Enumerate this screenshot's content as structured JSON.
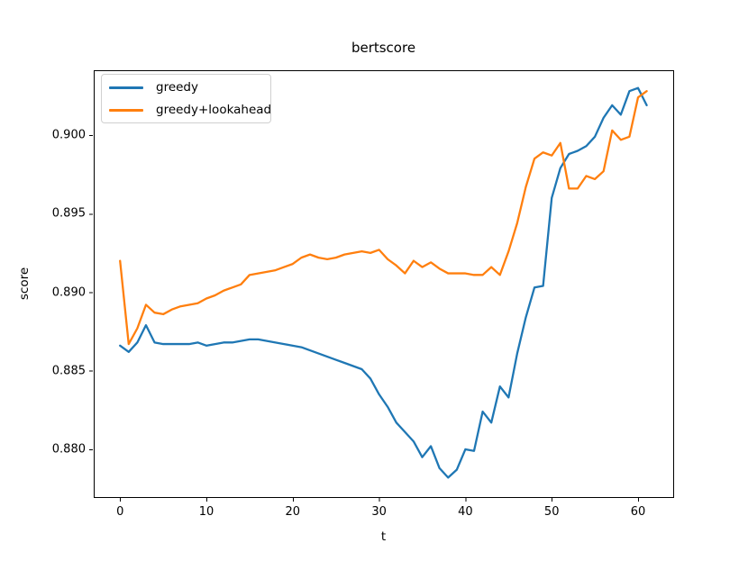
{
  "chart_data": {
    "type": "line",
    "title": "bertscore",
    "xlabel": "t",
    "ylabel": "score",
    "grid": false,
    "legend_position": "upper left",
    "xlim": [
      -3.05,
      64.07
    ],
    "ylim": [
      0.87696,
      0.90413
    ],
    "xticks": [
      0,
      10,
      20,
      30,
      40,
      50,
      60
    ],
    "xtick_labels": [
      "0",
      "10",
      "20",
      "30",
      "40",
      "50",
      "60"
    ],
    "yticks": [
      0.88,
      0.885,
      0.89,
      0.895,
      0.9
    ],
    "ytick_labels": [
      "0.880",
      "0.885",
      "0.890",
      "0.895",
      "0.900"
    ],
    "x": [
      0,
      1,
      2,
      3,
      4,
      5,
      6,
      7,
      8,
      9,
      10,
      11,
      12,
      13,
      14,
      15,
      16,
      17,
      18,
      19,
      20,
      21,
      22,
      23,
      24,
      25,
      26,
      27,
      28,
      29,
      30,
      31,
      32,
      33,
      34,
      35,
      36,
      37,
      38,
      39,
      40,
      41,
      42,
      43,
      44,
      45,
      46,
      47,
      48,
      49,
      50,
      51,
      52,
      53,
      54,
      55,
      56,
      57,
      58,
      59,
      60,
      61
    ],
    "series": [
      {
        "name": "greedy",
        "color": "#1f77b4",
        "values": [
          0.8866,
          0.8862,
          0.8868,
          0.8879,
          0.8868,
          0.8867,
          0.8867,
          0.8867,
          0.8867,
          0.8868,
          0.8866,
          0.8867,
          0.8868,
          0.8868,
          0.8869,
          0.887,
          0.887,
          0.8869,
          0.8868,
          0.8867,
          0.8866,
          0.8865,
          0.8863,
          0.8861,
          0.8859,
          0.8857,
          0.8855,
          0.8853,
          0.8851,
          0.8845,
          0.8835,
          0.8827,
          0.8817,
          0.8811,
          0.8805,
          0.8795,
          0.8802,
          0.8788,
          0.8782,
          0.8787,
          0.88,
          0.8799,
          0.8824,
          0.8817,
          0.884,
          0.8833,
          0.8861,
          0.8884,
          0.8903,
          0.8904,
          0.896,
          0.8979,
          0.8988,
          0.899,
          0.8993,
          0.8999,
          0.9011,
          0.9019,
          0.9013,
          0.9028,
          0.903,
          0.9019
        ]
      },
      {
        "name": "greedy+lookahead",
        "color": "#ff7f0e",
        "values": [
          0.892,
          0.8867,
          0.8877,
          0.8892,
          0.8887,
          0.8886,
          0.8889,
          0.8891,
          0.8892,
          0.8893,
          0.8896,
          0.8898,
          0.8901,
          0.8903,
          0.8905,
          0.8911,
          0.8912,
          0.8913,
          0.8914,
          0.8916,
          0.8918,
          0.8922,
          0.8924,
          0.8922,
          0.8921,
          0.8922,
          0.8924,
          0.8925,
          0.8926,
          0.8925,
          0.8927,
          0.8921,
          0.8917,
          0.8912,
          0.892,
          0.8916,
          0.8919,
          0.8915,
          0.8912,
          0.8912,
          0.8912,
          0.8911,
          0.8911,
          0.8916,
          0.8911,
          0.8926,
          0.8944,
          0.8967,
          0.8985,
          0.8989,
          0.8987,
          0.8995,
          0.8966,
          0.8966,
          0.8974,
          0.8972,
          0.8977,
          0.9003,
          0.8997,
          0.8999,
          0.9024,
          0.9028
        ]
      }
    ]
  }
}
